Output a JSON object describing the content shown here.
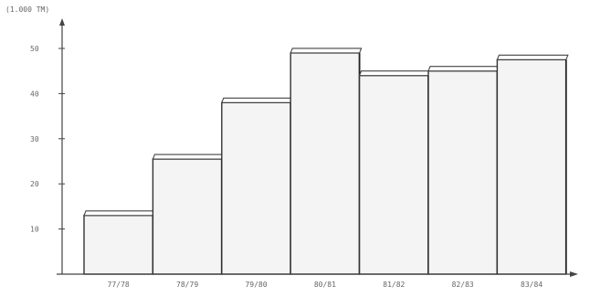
{
  "chart_data": {
    "type": "bar",
    "ylabel": "(1.000 TM)",
    "categories": [
      "77/78",
      "78/79",
      "79/80",
      "80/81",
      "81/82",
      "82/83",
      "83/84"
    ],
    "values": [
      13,
      25.5,
      38,
      49,
      44,
      45,
      47.5
    ],
    "ylim": [
      0,
      55
    ],
    "yticks": [
      10,
      20,
      30,
      40,
      50
    ],
    "ytick_labels": [
      "10",
      "20",
      "30",
      "40",
      "50"
    ],
    "grid": false,
    "bar_fill": "#f4f4f4",
    "line_color": "#333333",
    "label_color": "#666666"
  }
}
